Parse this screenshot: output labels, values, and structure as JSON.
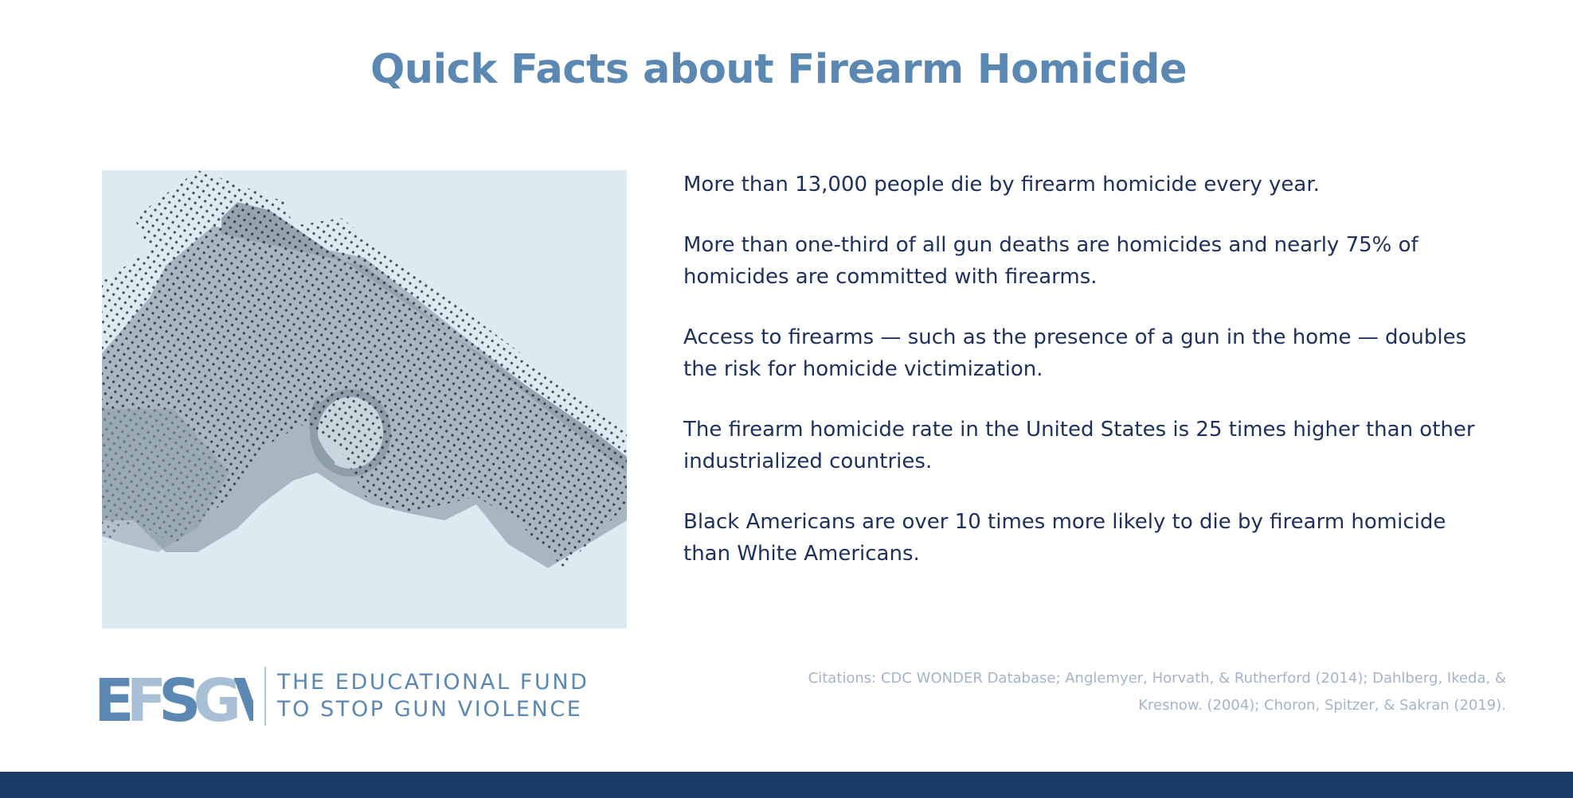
{
  "title": "Quick Facts about Firearm Homicide",
  "facts": [
    "More than 13,000 people die by firearm homicide every year.",
    "More than one-third of all gun deaths are homicides and nearly 75% of homicides are committed with firearms.",
    "Access to firearms — such as the presence of a gun in the home — doubles the risk for homicide victimization.",
    "The firearm homicide rate in the United States is 25 times higher than other industrialized countries.",
    "Black Americans are over 10 times more likely to die by firearm homicide than White Americans."
  ],
  "logo": {
    "mark": "EFSGV",
    "name_line1": "THE EDUCATIONAL FUND",
    "name_line2": "TO STOP GUN VIOLENCE"
  },
  "citations": "Citations: CDC WONDER Database; Anglemyer, Horvath, & Rutherford (2014); Dahlberg, Ikeda, & Kresnow. (2004); Choron, Spitzer, & Sakran (2019).",
  "illustration": {
    "icon": "handgun-icon"
  },
  "colors": {
    "title": "#5b88b2",
    "body_text": "#1d2f5c",
    "citations": "#a4b4c8",
    "illustration_bg": "#deeaf2",
    "footer_bar": "#1b3a66"
  }
}
